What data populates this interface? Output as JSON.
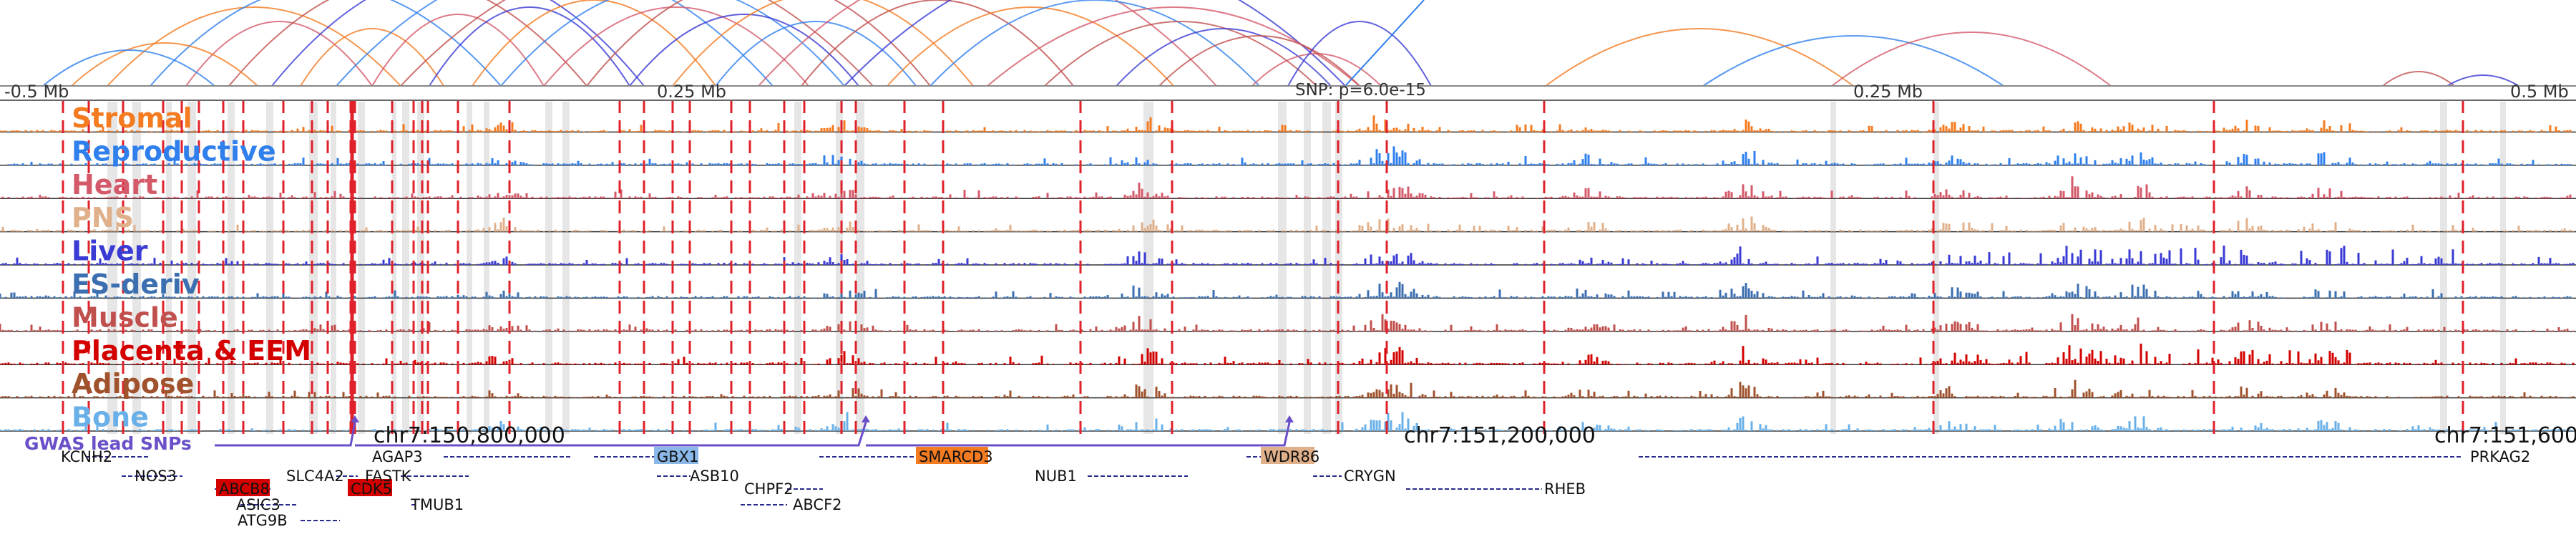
{
  "figure": {
    "ruler": {
      "left_label": "-0.5 Mb",
      "mid_left_label": "0.25 Mb",
      "snp_label": "SNP: p=6.0e-15",
      "mid_right_label": "0.25 Mb",
      "right_label": "0.5 Mb"
    },
    "tracks": [
      {
        "name": "Stromal",
        "color": "#f47b20"
      },
      {
        "name": "Reproductive",
        "color": "#2f80ed"
      },
      {
        "name": "Heart",
        "color": "#d45a6a"
      },
      {
        "name": "PNS",
        "color": "#e0b08a"
      },
      {
        "name": "Liver",
        "color": "#3a3ad4"
      },
      {
        "name": "ES-deriv",
        "color": "#3c6fb0"
      },
      {
        "name": "Muscle",
        "color": "#c0504d"
      },
      {
        "name": "Placenta & EEM",
        "color": "#d40000"
      },
      {
        "name": "Adipose",
        "color": "#a0522d"
      },
      {
        "name": "Bone",
        "color": "#6ab0e8"
      }
    ],
    "gwas_label": "GWAS lead SNPs",
    "coordinates": [
      "chr7:150,800,000",
      "chr7:151,200,000",
      "chr7:151,600"
    ],
    "genes": [
      {
        "name": "KCNH2",
        "highlight": null
      },
      {
        "name": "NOS3",
        "highlight": null
      },
      {
        "name": "ABCB8",
        "highlight": "#d40000"
      },
      {
        "name": "ASIC3",
        "highlight": null
      },
      {
        "name": "ATG9B",
        "highlight": null
      },
      {
        "name": "SLC4A2",
        "highlight": null
      },
      {
        "name": "CDK5",
        "highlight": "#d40000"
      },
      {
        "name": "AGAP3",
        "highlight": null
      },
      {
        "name": "FASTK",
        "highlight": null
      },
      {
        "name": "TMUB1",
        "highlight": null
      },
      {
        "name": "GBX1",
        "highlight": "#8ab8e8"
      },
      {
        "name": "ASB10",
        "highlight": null
      },
      {
        "name": "CHPF2",
        "highlight": null
      },
      {
        "name": "ABCF2",
        "highlight": null
      },
      {
        "name": "SMARCD3",
        "highlight": "#f47b20"
      },
      {
        "name": "NUB1",
        "highlight": null
      },
      {
        "name": "WDR86",
        "highlight": "#e0b08a"
      },
      {
        "name": "CRYGN",
        "highlight": null
      },
      {
        "name": "RHEB",
        "highlight": null
      },
      {
        "name": "PRKAG2",
        "highlight": null
      }
    ],
    "colors": {
      "snp_line": "#e0202a",
      "gwas": "#6a4fc8",
      "gene_line": "#2a2a8a",
      "arc_colors": [
        "#f47b20",
        "#2f80ed",
        "#d45a6a",
        "#c0504d",
        "#3a3ad4"
      ]
    }
  }
}
